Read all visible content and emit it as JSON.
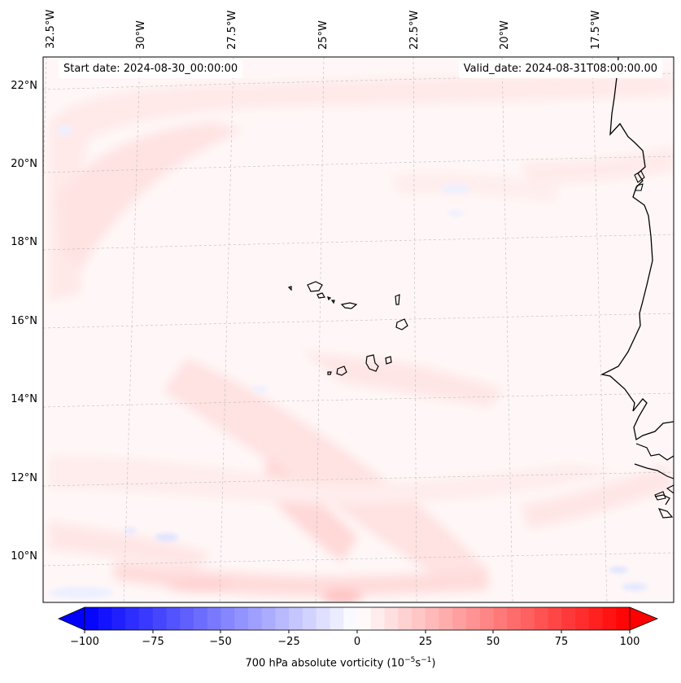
{
  "map": {
    "lon_labels": [
      "32.5°W",
      "30°W",
      "27.5°W",
      "25°W",
      "22.5°W",
      "20°W",
      "17.5°W"
    ],
    "lat_labels": [
      "22°N",
      "20°N",
      "18°N",
      "16°N",
      "14°N",
      "12°N",
      "10°N"
    ],
    "start_date": "Start date: 2024-08-30_00:00:00",
    "valid_date": "Valid_date: 2024-08-31T08:00:00.00",
    "extent": {
      "lon_min": -32.7,
      "lon_max": -16.5,
      "lat_min": 8.9,
      "lat_max": 22.8
    },
    "gridlines": true,
    "coastline_color": "#000000",
    "gridline_color": "#bbbbbb"
  },
  "colorbar": {
    "label": "700 hPa absolute vorticity (10",
    "label_exp": "−5",
    "label_unit": "s",
    "label_exp2": "−1",
    "label_close": ")",
    "ticks": [
      "−100",
      "−75",
      "−50",
      "−25",
      "0",
      "25",
      "50",
      "75",
      "100"
    ],
    "range": [
      -100,
      100
    ],
    "colormap": "bwr",
    "low_color": "#0000ff",
    "mid_color": "#ffffff",
    "high_color": "#ff0000",
    "extend": "both"
  }
}
